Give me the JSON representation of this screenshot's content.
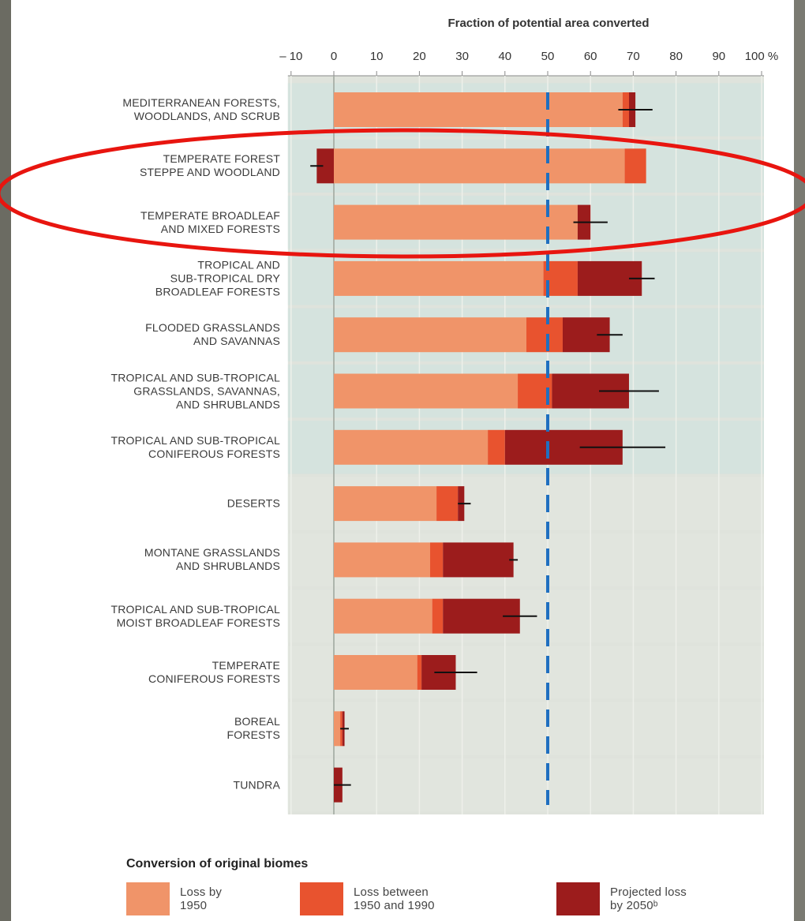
{
  "chart_data": {
    "type": "stacked-barh",
    "x_label": "Fraction of potential area converted",
    "legend_title": "Conversion of original biomes",
    "categories": [
      "MEDITERRANEAN FORESTS,\nWOODLANDS, AND SCRUB",
      "TEMPERATE FOREST\nSTEPPE AND WOODLAND",
      "TEMPERATE BROADLEAF\nAND MIXED FORESTS",
      "TROPICAL AND\nSUB-TROPICAL DRY\nBROADLEAF FORESTS",
      "FLOODED GRASSLANDS\nAND SAVANNAS",
      "TROPICAL AND SUB-TROPICAL\nGRASSLANDS, SAVANNAS,\nAND SHRUBLANDS",
      "TROPICAL AND SUB-TROPICAL\nCONIFEROUS FORESTS",
      "DESERTS",
      "MONTANE GRASSLANDS\nAND SHRUBLANDS",
      "TROPICAL AND SUB-TROPICAL\nMOIST BROADLEAF FORESTS",
      "TEMPERATE\nCONIFEROUS FORESTS",
      "BOREAL\nFORESTS",
      "TUNDRA"
    ],
    "series": [
      {
        "name": "Loss by\n1950",
        "color": "#f09469",
        "values": [
          67.5,
          68,
          57,
          49,
          45,
          43,
          36,
          24,
          22.5,
          23,
          19.5,
          1.5,
          0
        ]
      },
      {
        "name": "Loss between\n1950 and 1990",
        "color": "#e8532f",
        "values": [
          1.5,
          5,
          0,
          8,
          8.5,
          8,
          4,
          5,
          3,
          2.5,
          1,
          0.5,
          0
        ]
      },
      {
        "name": "Projected loss\nby 2050ᵇ",
        "color": "#9c1c1c",
        "values": [
          1.5,
          -4,
          3,
          15,
          11,
          18,
          27.5,
          1.5,
          16.5,
          18,
          8,
          0.5,
          2
        ]
      }
    ],
    "errors": [
      4,
      1.5,
      4,
      3,
      3,
      7,
      10,
      1.5,
      1,
      4,
      5,
      1,
      2
    ],
    "reference_line": 50,
    "xlim": [
      -10,
      100
    ],
    "xticks": [
      {
        "value": -10,
        "label": "– 10"
      },
      0,
      10,
      20,
      30,
      40,
      50,
      60,
      70,
      80,
      90,
      {
        "value": 100,
        "label": "100 %"
      }
    ]
  }
}
